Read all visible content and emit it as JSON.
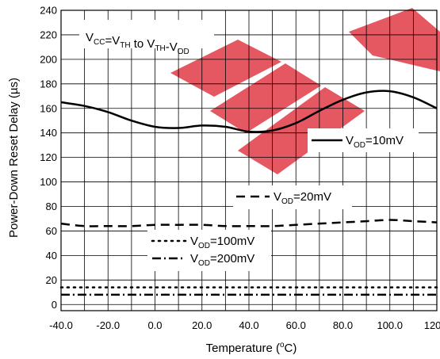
{
  "watermark": {
    "text": "EEP",
    "color": "#e03a45"
  },
  "chart_data": {
    "type": "line",
    "xlabel": {
      "main": "Temperature (",
      "sup": "o",
      "tail": "C)"
    },
    "ylabel": "Power-Down Reset Delay (µs)",
    "xlim": [
      -40,
      120
    ],
    "ylim": [
      -5,
      240
    ],
    "xticks": [
      -40,
      -20,
      0,
      20,
      40,
      60,
      80,
      100,
      120
    ],
    "xtick_labels": [
      "-40.0",
      "-20.0",
      "0.0",
      "20.0",
      "40.0",
      "60.0",
      "80.0",
      "100.0",
      "120.0"
    ],
    "yticks": [
      0,
      20,
      40,
      60,
      80,
      100,
      120,
      140,
      160,
      180,
      200,
      220,
      240
    ],
    "ytick_labels": [
      "0",
      "20",
      "40",
      "60",
      "80",
      "100",
      "120",
      "140",
      "160",
      "180",
      "200",
      "220",
      "240"
    ],
    "grid": true,
    "condition": {
      "parts": [
        {
          "t": "V",
          "sub": "CC"
        },
        {
          "t": "=V",
          "sub": "TH"
        },
        {
          "t": " to V",
          "sub": "TH"
        },
        {
          "t": "-V",
          "sub": "OD"
        }
      ]
    },
    "series": [
      {
        "name": "V_OD=10mV",
        "label": {
          "pre": "V",
          "sub": "OD",
          "post": "=10mV"
        },
        "style": "solid",
        "x": [
          -40,
          -30,
          -20,
          -10,
          0,
          10,
          20,
          30,
          40,
          50,
          60,
          70,
          80,
          90,
          100,
          110,
          120
        ],
        "y": [
          165,
          162,
          157,
          150,
          145,
          144,
          146,
          145,
          141,
          142,
          148,
          158,
          167,
          173,
          174,
          169,
          160
        ]
      },
      {
        "name": "V_OD=20mV",
        "label": {
          "pre": "V",
          "sub": "OD",
          "post": "=20mV"
        },
        "style": "dashed",
        "x": [
          -40,
          -30,
          -20,
          -10,
          0,
          10,
          20,
          30,
          40,
          50,
          60,
          70,
          80,
          90,
          100,
          110,
          120
        ],
        "y": [
          66,
          64,
          64,
          64,
          65,
          65,
          65,
          64,
          64,
          64,
          65,
          66,
          67,
          68,
          69,
          68,
          67
        ]
      },
      {
        "name": "V_OD=100mV",
        "label": {
          "pre": "V",
          "sub": "OD",
          "post": "=100mV"
        },
        "style": "dotted",
        "x": [
          -40,
          -20,
          0,
          20,
          40,
          60,
          80,
          100,
          120
        ],
        "y": [
          14,
          14,
          14,
          14,
          14,
          14,
          14,
          14,
          14
        ]
      },
      {
        "name": "V_OD=200mV",
        "label": {
          "pre": "V",
          "sub": "OD",
          "post": "=200mV"
        },
        "style": "dashdot",
        "x": [
          -40,
          -20,
          0,
          20,
          40,
          60,
          80,
          100,
          120
        ],
        "y": [
          8,
          8,
          8,
          8,
          8,
          8,
          8,
          8,
          8
        ]
      }
    ]
  }
}
